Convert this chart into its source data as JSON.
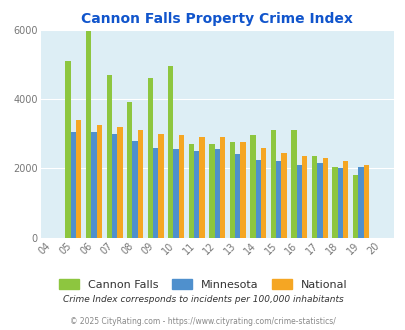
{
  "title": "Cannon Falls Property Crime Index",
  "years": [
    "04",
    "05",
    "06",
    "07",
    "08",
    "09",
    "10",
    "11",
    "12",
    "13",
    "14",
    "15",
    "16",
    "17",
    "18",
    "19",
    "20"
  ],
  "cannon_falls": [
    0,
    5100,
    5950,
    4700,
    3900,
    4600,
    4950,
    2700,
    2700,
    2750,
    2950,
    3100,
    3100,
    2350,
    2050,
    1800,
    0
  ],
  "minnesota": [
    0,
    3050,
    3050,
    3000,
    2800,
    2600,
    2550,
    2500,
    2550,
    2400,
    2250,
    2200,
    2100,
    2150,
    2000,
    2050,
    0
  ],
  "national": [
    0,
    3400,
    3250,
    3200,
    3100,
    3000,
    2950,
    2900,
    2900,
    2750,
    2600,
    2450,
    2350,
    2300,
    2200,
    2100,
    0
  ],
  "cannon_falls_color": "#8dc63f",
  "minnesota_color": "#4f90cd",
  "national_color": "#f5a623",
  "bg_color": "#ddeef5",
  "ylim": [
    0,
    6000
  ],
  "yticks": [
    0,
    2000,
    4000,
    6000
  ],
  "legend_labels": [
    "Cannon Falls",
    "Minnesota",
    "National"
  ],
  "footnote1": "Crime Index corresponds to incidents per 100,000 inhabitants",
  "footnote2": "© 2025 CityRating.com - https://www.cityrating.com/crime-statistics/",
  "title_color": "#1155cc",
  "footnote1_color": "#333333",
  "footnote2_color": "#888888"
}
